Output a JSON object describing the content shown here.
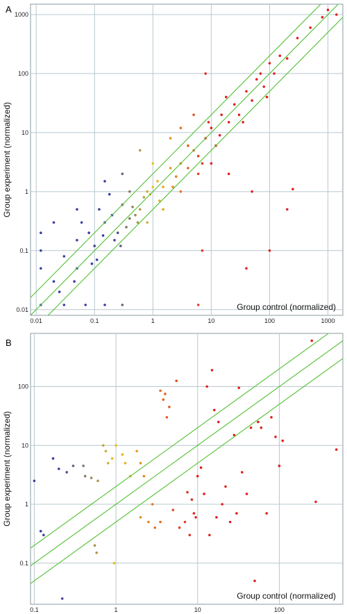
{
  "chart_data": [
    {
      "type": "scatter",
      "panel": "A",
      "xlabel": "Group control (normalized)",
      "ylabel": "Group experiment (normalized)",
      "x_scale": "log",
      "y_scale": "log",
      "xlim": [
        0.008,
        1800
      ],
      "ylim": [
        0.008,
        1500
      ],
      "x_ticks": [
        "0.01",
        "0.1",
        "1",
        "10",
        "100",
        "1000"
      ],
      "y_ticks": [
        "0.01",
        "0.1",
        "1",
        "10",
        "100",
        "1000"
      ],
      "grid": true,
      "fold_lines": [
        0.5,
        1,
        2
      ],
      "colors": {
        "low": "#3a3ea0",
        "mid": "#e8c020",
        "high": "#e02020"
      },
      "points": [
        [
          0.012,
          0.012
        ],
        [
          0.012,
          0.05
        ],
        [
          0.012,
          0.2
        ],
        [
          0.02,
          0.03
        ],
        [
          0.03,
          0.08
        ],
        [
          0.05,
          0.15
        ],
        [
          0.08,
          0.2
        ],
        [
          0.1,
          0.12
        ],
        [
          0.12,
          0.5
        ],
        [
          0.15,
          0.3
        ],
        [
          0.2,
          0.4
        ],
        [
          0.25,
          0.2
        ],
        [
          0.3,
          0.6
        ],
        [
          0.4,
          0.35
        ],
        [
          0.05,
          0.05
        ],
        [
          0.06,
          0.3
        ],
        [
          0.09,
          0.06
        ],
        [
          0.18,
          0.9
        ],
        [
          0.22,
          0.15
        ],
        [
          0.35,
          0.25
        ],
        [
          0.03,
          0.012
        ],
        [
          0.07,
          0.012
        ],
        [
          0.15,
          0.012
        ],
        [
          0.3,
          0.012
        ],
        [
          0.5,
          0.4
        ],
        [
          0.6,
          0.5
        ],
        [
          0.7,
          0.8
        ],
        [
          0.8,
          1
        ],
        [
          1,
          1.2
        ],
        [
          1.2,
          1.5
        ],
        [
          1.5,
          1.2
        ],
        [
          2,
          2.5
        ],
        [
          2.5,
          1.8
        ],
        [
          3,
          3
        ],
        [
          4,
          2.5
        ],
        [
          5,
          5
        ],
        [
          6,
          4
        ],
        [
          8,
          8
        ],
        [
          10,
          12
        ],
        [
          12,
          6
        ],
        [
          15,
          20
        ],
        [
          20,
          15
        ],
        [
          25,
          30
        ],
        [
          30,
          20
        ],
        [
          40,
          50
        ],
        [
          50,
          35
        ],
        [
          60,
          80
        ],
        [
          80,
          60
        ],
        [
          100,
          150
        ],
        [
          120,
          100
        ],
        [
          150,
          200
        ],
        [
          200,
          180
        ],
        [
          300,
          400
        ],
        [
          500,
          600
        ],
        [
          800,
          900
        ],
        [
          1000,
          1200
        ],
        [
          1400,
          1000
        ],
        [
          1.5,
          0.5
        ],
        [
          3,
          1
        ],
        [
          6,
          2
        ],
        [
          10,
          3
        ],
        [
          20,
          2
        ],
        [
          50,
          1
        ],
        [
          100,
          0.1
        ],
        [
          200,
          0.5
        ],
        [
          6,
          0.012
        ],
        [
          40,
          0.05
        ],
        [
          250,
          1.1
        ],
        [
          7,
          0.1
        ],
        [
          0.9,
          0.9
        ],
        [
          2,
          8
        ],
        [
          3,
          12
        ],
        [
          5,
          20
        ],
        [
          8,
          100
        ],
        [
          0.6,
          5
        ],
        [
          1,
          3
        ],
        [
          0.4,
          1
        ],
        [
          0.3,
          2
        ],
        [
          0.15,
          1.5
        ],
        [
          0.8,
          0.3
        ],
        [
          1.3,
          0.7
        ],
        [
          2.2,
          1.2
        ],
        [
          4,
          6
        ],
        [
          7,
          3
        ],
        [
          9,
          15
        ],
        [
          14,
          9
        ],
        [
          18,
          40
        ],
        [
          35,
          15
        ],
        [
          70,
          100
        ],
        [
          90,
          40
        ],
        [
          0.025,
          0.02
        ],
        [
          0.045,
          0.03
        ],
        [
          0.11,
          0.07
        ],
        [
          0.14,
          0.18
        ],
        [
          0.28,
          0.12
        ],
        [
          0.45,
          0.55
        ],
        [
          0.55,
          0.3
        ],
        [
          0.02,
          0.3
        ],
        [
          0.012,
          0.1
        ],
        [
          0.05,
          0.5
        ]
      ]
    },
    {
      "type": "scatter",
      "panel": "B",
      "xlabel": "Group control (normalized)",
      "ylabel": "Group experiment (normalized)",
      "x_scale": "log",
      "y_scale": "log",
      "xlim": [
        0.09,
        600
      ],
      "ylim": [
        0.02,
        800
      ],
      "x_ticks": [
        "0.1",
        "1",
        "10",
        "100"
      ],
      "y_ticks": [
        "0.1",
        "1",
        "10",
        "100"
      ],
      "grid": true,
      "fold_lines": [
        0.5,
        1,
        2
      ],
      "colors": {
        "low": "#3a3ea0",
        "mid": "#e8c020",
        "high": "#e02020"
      },
      "points": [
        [
          0.1,
          2.5
        ],
        [
          0.12,
          0.35
        ],
        [
          0.13,
          0.3
        ],
        [
          0.17,
          6
        ],
        [
          0.2,
          4
        ],
        [
          0.22,
          0.025
        ],
        [
          0.25,
          3.5
        ],
        [
          0.3,
          4.5
        ],
        [
          0.4,
          4.5
        ],
        [
          0.42,
          3
        ],
        [
          0.5,
          2.8
        ],
        [
          0.55,
          0.2
        ],
        [
          0.58,
          0.15
        ],
        [
          0.6,
          2.5
        ],
        [
          0.7,
          10
        ],
        [
          0.75,
          8
        ],
        [
          0.8,
          5
        ],
        [
          0.9,
          6
        ],
        [
          0.95,
          0.1
        ],
        [
          1,
          10
        ],
        [
          1.2,
          7
        ],
        [
          1.3,
          5
        ],
        [
          1.5,
          3
        ],
        [
          1.8,
          8
        ],
        [
          2,
          5
        ],
        [
          2,
          0.6
        ],
        [
          2.2,
          3
        ],
        [
          2.5,
          0.5
        ],
        [
          2.8,
          1
        ],
        [
          3,
          0.4
        ],
        [
          3.5,
          0.5
        ],
        [
          3.5,
          85
        ],
        [
          3.8,
          60
        ],
        [
          4,
          75
        ],
        [
          4.2,
          30
        ],
        [
          4.5,
          45
        ],
        [
          5,
          0.8
        ],
        [
          5.5,
          125
        ],
        [
          6,
          0.4
        ],
        [
          7,
          0.5
        ],
        [
          7.5,
          1.6
        ],
        [
          8,
          0.3
        ],
        [
          8.5,
          1.2
        ],
        [
          9,
          0.7
        ],
        [
          9.5,
          0.6
        ],
        [
          10,
          3
        ],
        [
          11,
          4.2
        ],
        [
          12,
          1.5
        ],
        [
          13,
          100
        ],
        [
          14,
          0.3
        ],
        [
          15,
          190
        ],
        [
          16,
          40
        ],
        [
          17,
          0.6
        ],
        [
          18,
          25
        ],
        [
          20,
          1
        ],
        [
          22,
          2
        ],
        [
          25,
          0.5
        ],
        [
          28,
          15
        ],
        [
          30,
          0.7
        ],
        [
          32,
          95
        ],
        [
          35,
          3.5
        ],
        [
          40,
          1.5
        ],
        [
          45,
          20
        ],
        [
          50,
          0.05
        ],
        [
          55,
          25
        ],
        [
          60,
          20
        ],
        [
          70,
          0.7
        ],
        [
          80,
          30
        ],
        [
          90,
          14
        ],
        [
          100,
          4.5
        ],
        [
          110,
          12
        ],
        [
          250,
          600
        ],
        [
          280,
          1.1
        ],
        [
          500,
          8.5
        ]
      ]
    }
  ]
}
